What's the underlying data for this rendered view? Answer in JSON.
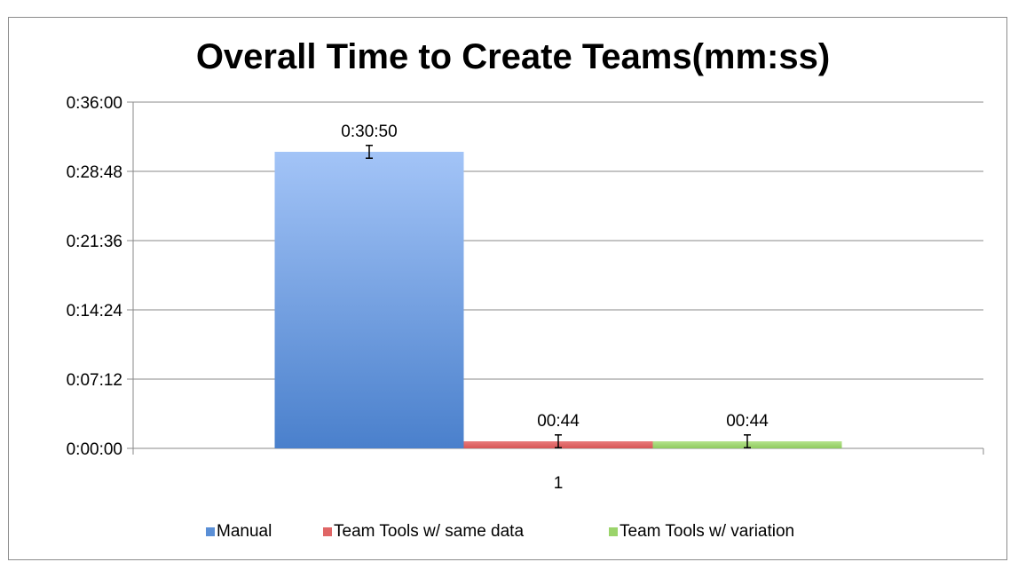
{
  "chart_data": {
    "type": "bar",
    "title": "Overall Time to Create Teams(mm:ss)",
    "xlabel": "",
    "ylabel": "",
    "categories": [
      "1"
    ],
    "y_unit": "seconds",
    "ylim": [
      0,
      2160
    ],
    "y_ticks": [
      {
        "value": 0,
        "label": "0:00:00"
      },
      {
        "value": 432,
        "label": "0:07:12"
      },
      {
        "value": 864,
        "label": "0:14:24"
      },
      {
        "value": 1296,
        "label": "0:21:36"
      },
      {
        "value": 1728,
        "label": "0:28:48"
      },
      {
        "value": 2160,
        "label": "0:36:00"
      }
    ],
    "grid": true,
    "legend_position": "bottom",
    "series": [
      {
        "name": "Manual",
        "values": [
          1850
        ],
        "error": 40,
        "label": "0:30:50",
        "color": "#5a8fd6",
        "gradient": [
          "#4a80cc",
          "#a3c4f7"
        ]
      },
      {
        "name": "Team Tools w/ same data",
        "values": [
          44
        ],
        "error": 40,
        "label": "00:44",
        "color": "#e06666",
        "gradient": [
          "#d75656",
          "#e87a7a"
        ]
      },
      {
        "name": "Team Tools w/ variation",
        "values": [
          44
        ],
        "error": 40,
        "label": "00:44",
        "color": "#9bd46b",
        "gradient": [
          "#8fca5e",
          "#b5e38d"
        ]
      }
    ]
  }
}
